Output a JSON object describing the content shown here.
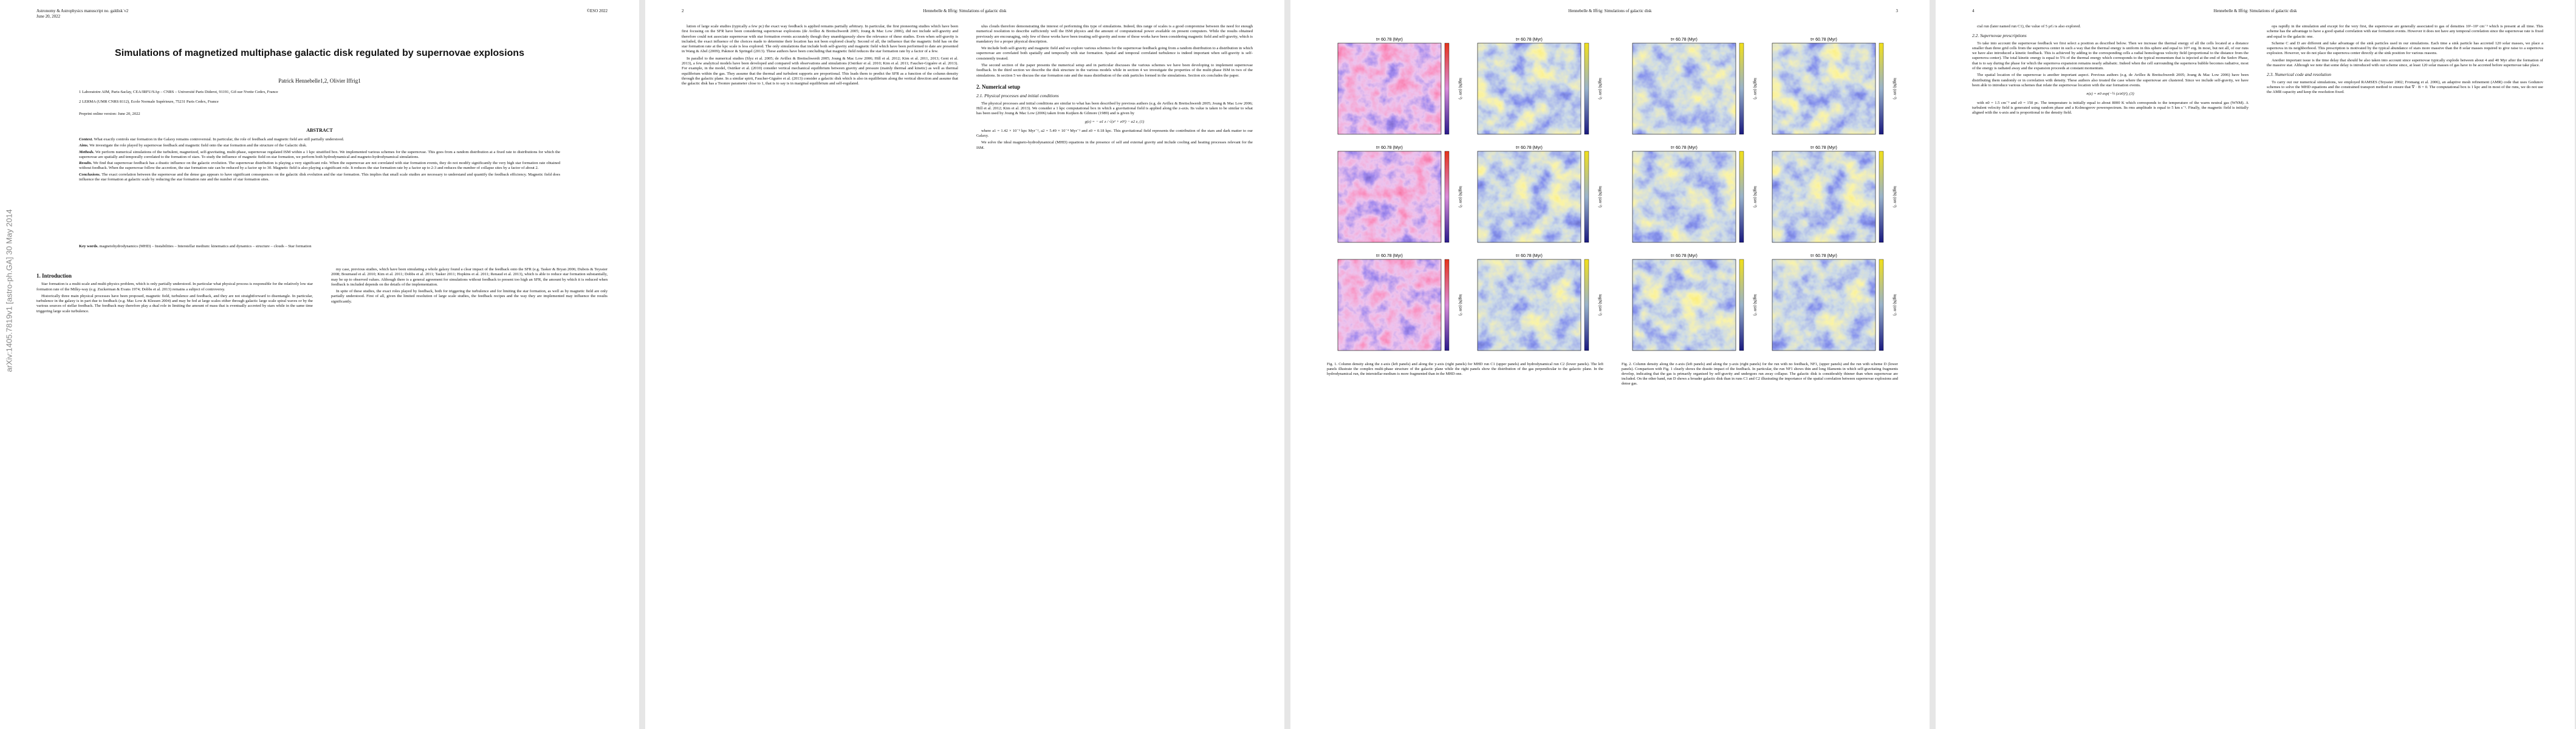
{
  "pages": [
    {
      "header": {
        "left": "Astronomy & Astrophysics manuscript no. galdisk˙v2",
        "date": "June 20, 2022",
        "right": "©ESO 2022"
      },
      "stamp": "arXiv:1405.7819v1 [astro-ph.GA] 30 May 2014",
      "title": "Simulations of magnetized multiphase galactic disk regulated by supernovae explosions",
      "authors": "Patrick Hennebelle1,2, Olivier Iffrig1",
      "affiliations": [
        "1 Laboratoire AIM, Paris-Saclay, CEA/IRFU/SAp – CNRS – Université Paris Diderot, 91191, Gif-sur-Yvette Cedex, France",
        "2 LERMA (UMR CNRS 8112), Ecole Normale Supérieure, 75231 Paris Cedex, France"
      ],
      "received": "Preprint online version: June 20, 2022",
      "abstract": {
        "heading": "ABSTRACT",
        "items": [
          {
            "label": "Context.",
            "text": "What exactly controls star formation in the Galaxy remains controversial. In particular, the role of feedback and magnetic field are still partially understood."
          },
          {
            "label": "Aims.",
            "text": "We investigate the role played by supernovae feedback and magnetic field onto the star formation and the structure of the Galactic disk."
          },
          {
            "label": "Methods.",
            "text": "We perform numerical simulations of the turbulent, magnetized, self-gravitating, multi-phase, supernovae regulated ISM within a 1 kpc stratified box. We implemented various schemes for the supernovae. This goes from a random distribution at a fixed rate to distributions for which the supernovae are spatially and temporally correlated to the formation of stars. To study the influence of magnetic field on star formation, we perform both hydrodynamical and magneto-hydrodynamical simulations."
          },
          {
            "label": "Results.",
            "text": "We find that supernovae feedback has a drastic influence on the galactic evolution. The supernovae distribution is playing a very significant role. When the supernovae are not correlated with star formation events, they do not modify significantly the very high star formation rate obtained without feedback. When the supernovae follow the accretion, the star formation rate can be reduced by a factor up to 30. Magnetic field is also playing a significant role. It reduces the star formation rate by a factor up to 2-3 and reduces the number of collapse sites by a factor of about 2."
          },
          {
            "label": "Conclusions.",
            "text": "The exact correlation between the supernovae and the dense gas appears to have significant consequences on the galactic disk evolution and the star formation. This implies that small scale studies are necessary to understand and quantify the feedback efficiency. Magnetic field does influence the star formation at galactic scale by reducing the star formation rate and the number of star formation sites."
          }
        ]
      },
      "keywords": {
        "label": "Key words.",
        "text": "magnetohydrodynamics (MHD) – Instabilities – Interstellar medium: kinematics and dynamics – structure – clouds – Star formation"
      },
      "columns": [
        [
          {
            "heading": "1. Introduction"
          },
          {
            "text": "Star formation is a multi-scale and multi-physics problem, which is only partially understood. In particular what physical process is responsible for the relatively low star formation rate of the Milky-way (e.g. Zuckerman & Evans 1974; Dobbs et al. 2013) remains a subject of controversy."
          },
          {
            "text": "Historically three main physical processes have been proposed, magnetic field, turbulence and feedback, and they are not straightforward to disentangle. In particular, turbulence in the galaxy is in part due to feedback (e.g. Mac Low & Klessen 2004) and may be fed at large scales either through galactic large scale spiral waves or by the various sources of stellar feedback. The feedback may therefore play a dual role in limiting the amount of mass that is eventually accreted by stars while in the same time triggering large scale turbulence."
          }
        ],
        [
          {
            "text": "my case, previous studies, which have been simulating a whole galaxy found a clear impact of the feedback onto the SFR (e.g. Tasker & Bryan 2006; Dubois & Teyssier 2008; Bournaud et al. 2010; Kim et al. 2011; Dobbs et al. 2011; Tasker 2011; Hopkins et al. 2011; Renaud et al. 2013), which is able to reduce star formation substantially, may be up to observed values. Although there is a general agreement for simulations without feedback to present too high an SFR, the amount by which it is reduced when feedback is included depends on the details of the implementation."
          },
          {
            "text": "In spite of these studies, the exact roles played by feedback, both for triggering the turbulence and for limiting the star formation, as well as by magnetic field are only partially understood. First of all, given the limited resolution of large scale studies, the feedback recipes and the way they are implemented may influence the results significantly."
          }
        ]
      ]
    },
    {
      "header": {
        "left": "2",
        "center": "Hennebelle & Iffrig: Simulations of galactic disk"
      },
      "columns": [
        [
          {
            "text": "lution of large scale studies (typically a few pc) the exact way feedback is applied remains partially arbitrary. In particular, the first pioneering studies which have been first focusing on the SFR have been considering supernovae explosions (de Avillez & Breitschwerdt 2005; Joung & Mac Low 2006), did not include self-gravity and therefore could not associate supernovae with star formation events accurately though they unambiguously show the relevance of these studies. Even when self-gravity is included, the exact influence of the choices made to determine their location has not been explored clearly. Second of all, the influence that the magnetic field has on the star formation rate at the kpc scale is less explored. The only simulations that include both self-gravity and magnetic field which have been performed to date are presented in Wang & Abel (2009); Pakmor & Springel (2013). These authors have been concluding that magnetic field reduces the star formation rate by a factor of a few."
          },
          {
            "text": "In parallel to the numerical studies (Slyz et al. 2005; de Avillez & Breitschwerdt 2005; Joung & Mac Low 2006; Hill et al. 2012; Kim et al. 2011, 2013; Gent et al. 2013), a few analytical models have been developed and compared with observations and simulations (Ostriker et al. 2010; Kim et al. 2011; Faucher-Giguère et al. 2013). For example, in the model, Ostriker et al. (2010) consider vertical mechanical equilibrium between gravity and pressure (mainly thermal and kinetic) as well as thermal equilibrium within the gas. They assume that the thermal and turbulent supports are proportional. This leads them to predict the SFR as a function of the column density through the galactic plane. In a similar spirit, Faucher-Giguère et al. (2013) consider a galactic disk which is also in equilibrium along the vertical direction and assume that the galactic disk has a Toomre parameter close to 1, that is to say is in marginal equilibrium and self-regulated."
          }
        ],
        [
          {
            "text": "ulus clouds therefore demonstrating the interest of performing this type of simulations. Indeed, this range of scales is a good compromise between the need for enough numerical resolution to describe sufficiently well the ISM physics and the amount of computational power available on present computers. While the results obtained previously are encouraging, only few of these works have been treating self-gravity and none of those works have been considering magnetic field and self-gravity, which is mandatory for a proper physical description."
          },
          {
            "text": "We include both self-gravity and magnetic field and we explore various schemes for the supernovae feedback going from a random distribution to a distribution in which supernovae are correlated both spatially and temporally with star formation. Spatial and temporal correlated turbulence is indeed important when self-gravity is self-consistently treated."
          },
          {
            "text": "The second section of the paper presents the numerical setup and in particular discusses the various schemes we have been developing to implement supernovae feedback. In the third section we describe the disk structure in the various models while in section 4 we investigate the properties of the multi-phase ISM in two of the simulations. In section 5 we discuss the star formation rate and the mass distribution of the sink particles formed in the simulations. Section six concludes the paper."
          },
          {
            "heading": "2. Numerical setup"
          },
          {
            "subheading": "2.1. Physical processes and initial conditions"
          },
          {
            "text": "The physical processes and initial conditions are similar to what has been described by previous authors (e.g. de Avillez & Breitschwerdt 2005; Joung & Mac Low 2006; Hill et al. 2012; Kim et al. 2013). We consider a 1 kpc computational box in which a gravitational field is applied along the z-axis. Its value is taken to be similar to what has been used by Joung & Mac Low (2006) taken from Kuijken & Gilmore (1989) and is given by"
          },
          {
            "equation": "g(z) = − a1 z / √(z² + z0²) − a2 z,   (1)"
          },
          {
            "text": "where a1 = 1.42 × 10⁻³ kpc Myr⁻², a2 = 5.49 × 10⁻⁴ Myr⁻² and z0 = 0.18 kpc. This gravitational field represents the contribution of the stars and dark matter to our Galaxy."
          },
          {
            "text": "We solve the ideal magneto-hydrodynamical (MHD) equations in the presence of self and external gravity and include cooling and heating processes relevant for the ISM."
          }
        ]
      ]
    },
    {
      "header": {
        "center": "Hennebelle & Iffrig: Simulations of galactic disk",
        "right": "3"
      },
      "figures": [
        {
          "panels": [
            {
              "title": "t= 60.78 (Myr)",
              "colorbar": "log(N) (cm⁻²)"
            },
            {
              "title": "t= 60.78 (Myr)",
              "colorbar": "log(N) (cm⁻²)"
            },
            {
              "title": "t= 60.78 (Myr)",
              "colorbar": "log(N) (cm⁻²)"
            },
            {
              "title": "t= 60.78 (Myr)",
              "colorbar": "log(N) (cm⁻²)"
            },
            {
              "title": "t= 60.78 (Myr)",
              "colorbar": "log(N) (cm⁻²)"
            },
            {
              "title": "t= 60.78 (Myr)",
              "colorbar": "log(N) (cm⁻²)"
            }
          ],
          "caption": "Fig. 1. Column density along the z-axis (left panels) and along the y-axis (right panels) for MHD run C1 (upper panels) and hydrodynamical run C2 (lower panels). The left panels illustrate the complex multi-phase structure of the galactic plane while the right panels show the distribution of the gas perpendicular to the galactic plane. In the hydrodynamical run, the interstellar medium is more fragmented than in the MHD one."
        },
        {
          "panels": [
            {
              "title": "t= 60.78 (Myr)",
              "colorbar": "log(N) (cm⁻²)"
            },
            {
              "title": "t= 60.78 (Myr)",
              "colorbar": "log(N) (cm⁻²)"
            },
            {
              "title": "t= 60.78 (Myr)",
              "colorbar": "log(N) (cm⁻²)"
            },
            {
              "title": "t= 60.78 (Myr)",
              "colorbar": "log(N) (cm⁻²)"
            },
            {
              "title": "t= 60.78 (Myr)",
              "colorbar": "log(N) (cm⁻²)"
            },
            {
              "title": "t= 60.78 (Myr)",
              "colorbar": "log(N) (cm⁻²)"
            }
          ],
          "caption": "Fig. 2. Column density along the z-axis (left panels) and along the y-axis (right panels) for the run with no feedback, NF1, (upper panels) and the run with scheme D (lower panels). Comparison with Fig. 1 clearly shows the drastic impact of the feedback. In particular, the run NF1 shows thin and long filaments in which self-gravitating fragments develop, indicating that the gas is primarily organised by self-gravity and undergoes run away collapse. The galactic disk is considerably thinner than when supernovae are included. On the other hand, run D shows a broader galactic disk than in runs C1 and C2 illustrating the importance of the spatial correlation between supernovae explosions and dense gas."
        }
      ]
    },
    {
      "header": {
        "left": "4",
        "center": "Hennebelle & Iffrig: Simulations of galactic disk"
      },
      "columns": [
        [
          {
            "text": "cial run (later named run C1), the value of 5 µG is also explored."
          },
          {
            "subheading": "2.2. Supernovae prescriptions"
          },
          {
            "text": "To take into account the supernovae feedback we first select a position as described below. Then we increase the thermal energy of all the cells located at a distance smaller than three grid cells from the supernova center in such a way that the thermal energy is uniform in this sphere and equal to 10⁵¹ erg. In most, but not all, of our runs we have also introduced a kinetic feedback. This is achieved by adding to the corresponding cells a radial homologous velocity field (proportional to the distance from the supernova center). The total kinetic energy is equal to 5% of the thermal energy which corresponds to the typical momentum that is injected at the end of the Sedov Phase, that is to say during the phase for which the supernova expansion remains nearly adiabatic. Indeed when the cell surrounding the supernova bubble becomes radiative, most of the energy is radiated away and the expansion proceeds at constant momentum."
          },
          {
            "text": "The spatial location of the supernovae is another important aspect. Previous authors (e.g. de Avillez & Breitschwerdt 2005; Joung & Mac Low 2006) have been distributing them randomly or in correlation with density. These authors also treated the case where the supernovae are clustered. Since we include self-gravity, we have been able to introduce various schemes that relate the supernovae location with the star formation events."
          },
          {
            "equation": "n(z) = n0 exp(−½ (z/z0)²),   (3)"
          },
          {
            "text": "with n0 = 1.5 cm⁻³ and z0 = 150 pc. The temperature is initially equal to about 8000 K which corresponds to the temperature of the warm neutral gas (WNM). A turbulent velocity field is generated using random phase and a Kolmogorov powerspectrum. Its rms amplitude is equal to 5 km s⁻¹. Finally, the magnetic field is initially aligned with the x-axis and is proportional to the density field."
          }
        ],
        [
          {
            "text": "ops rapidly in the simulation and except for the very first, the supernovae are generally associated to gas of densities 10²–10³ cm⁻³ which is present at all time. This scheme has the advantage to have a good spatial correlation with star formation events. However it does not have any temporal correlation since the supernovae rate is fixed and equal to the galactic one."
          },
          {
            "text": "Scheme C and D are different and take advantage of the sink particles used in our simulations. Each time a sink particle has accreted 120 solar masses, we place a supernova in its neighborhood. This prescription is motivated by the typical abundance of stars more massive than the 8 solar masses required to give raise to a supernova explosion. However, we do not place the supernova center directly at the sink position for various reasons."
          },
          {
            "text": "Another important issue is the time delay that should be also taken into account since supernovae typically explode between about 4 and 40 Myr after the formation of the massive star. Although we note that some delay is introduced with our scheme since, at least 120 solar masses of gas have to be accreted before supernovae take place."
          },
          {
            "subheading": "2.3. Numerical code and resolution"
          },
          {
            "text": "To carry out our numerical simulations, we employed RAMSES (Teyssier 2002; Fromang et al. 2006), an adaptive mesh refinement (AMR) code that uses Godunov schemes to solve the MHD equations and the constrained transport method to ensure that ∇ · B = 0. The computational box is 1 kpc and in most of the runs, we do not use the AMR capacity and keep the resolution fixed."
          }
        ]
      ]
    }
  ]
}
